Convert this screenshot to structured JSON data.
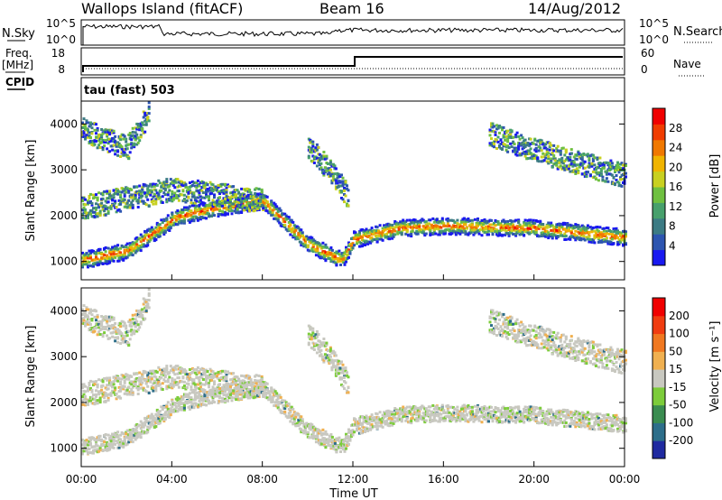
{
  "header": {
    "title": "Wallops Island (fitACF)",
    "beam": "Beam 16",
    "date": "14/Aug/2012"
  },
  "panels": {
    "nsky": {
      "left_label": "N.Sky",
      "left_ticks": [
        "10^5",
        "10^0"
      ],
      "right_ticks": [
        "10^5",
        "10^0"
      ],
      "right_label": "N.Search"
    },
    "freq": {
      "left_label_top": "Freq.",
      "left_label_unit": "[MHz]",
      "left_ticks": [
        "18",
        "8"
      ],
      "right_ticks": [
        "60",
        "0"
      ],
      "right_label": "Nave",
      "cpid_label": "CPID"
    },
    "cpid": {
      "text": "tau (fast) 503"
    }
  },
  "chart_data": [
    {
      "type": "heatmap",
      "name": "power",
      "ylabel": "Slant Range [km]",
      "ytick_labels": [
        "1000",
        "2000",
        "3000",
        "4000"
      ],
      "ylim": [
        600,
        4500
      ],
      "xlim": [
        0,
        24
      ],
      "colorbar": {
        "label": "Power [dB]",
        "tick_labels": [
          "4",
          "8",
          "12",
          "16",
          "20",
          "24",
          "28"
        ],
        "colors": [
          "#1919f0",
          "#2d55b0",
          "#3c7b84",
          "#47a06c",
          "#6fc040",
          "#c8d020",
          "#f0b400",
          "#f07800",
          "#f03c00",
          "#f00000"
        ]
      }
    },
    {
      "type": "heatmap",
      "name": "velocity",
      "ylabel": "Slant Range [km]",
      "ytick_labels": [
        "1000",
        "2000",
        "3000",
        "4000"
      ],
      "ylim": [
        600,
        4500
      ],
      "xlim": [
        0,
        24
      ],
      "xlabel": "Time UT",
      "xtick_labels": [
        "00:00",
        "04:00",
        "08:00",
        "12:00",
        "16:00",
        "20:00",
        "00:00"
      ],
      "colorbar": {
        "label": "Velocity [m s⁻¹]",
        "tick_labels": [
          "200",
          "100",
          "50",
          "15",
          "-15",
          "-50",
          "-100",
          "-200"
        ],
        "colors": [
          "#1f2aa0",
          "#2d6e8a",
          "#3a8c50",
          "#7ccc3a",
          "#c8c8c0",
          "#f0b050",
          "#f07820",
          "#f03c10",
          "#f00000"
        ]
      }
    }
  ]
}
